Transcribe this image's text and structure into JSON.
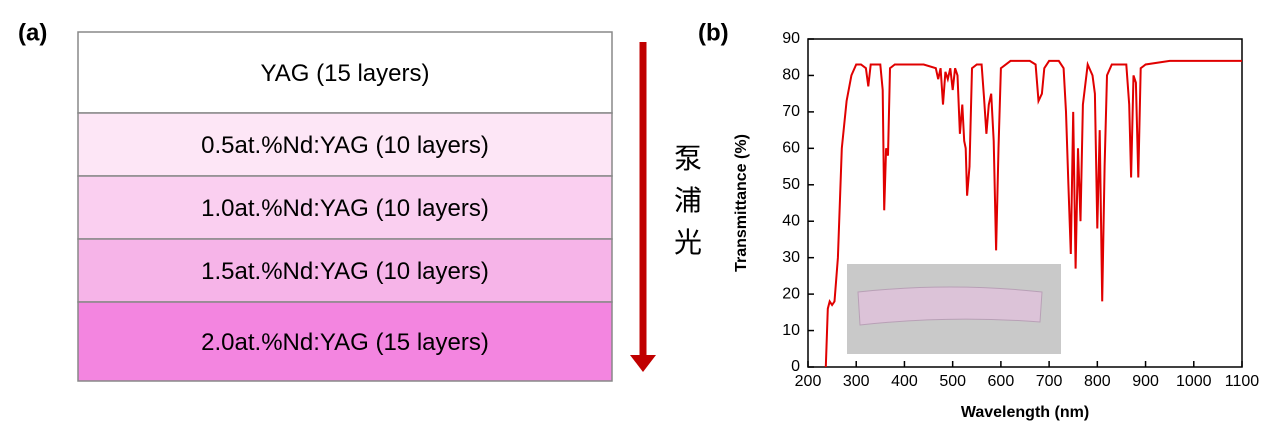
{
  "panel_a": {
    "label": "(a)",
    "arrow_label": "泵浦光",
    "arrow_color": "#c00000",
    "layers": [
      {
        "text": "YAG (15 layers)",
        "color": "#ffffff"
      },
      {
        "text": "0.5at.%Nd:YAG (10 layers)",
        "color": "#fde6f6"
      },
      {
        "text": "1.0at.%Nd:YAG (10 layers)",
        "color": "#facff0"
      },
      {
        "text": "1.5at.%Nd:YAG (10 layers)",
        "color": "#f6b4e8"
      },
      {
        "text": "2.0at.%Nd:YAG (15 layers)",
        "color": "#f385e0"
      }
    ]
  },
  "chart_data": {
    "type": "line",
    "panel_label": "(b)",
    "x_label": "Wavelength (nm)",
    "y_label": "Transmittance (%)",
    "x": [
      237,
      241,
      245,
      250,
      255,
      262,
      270,
      280,
      290,
      300,
      310,
      320,
      325,
      330,
      335,
      340,
      350,
      355,
      358,
      362,
      366,
      370,
      380,
      400,
      440,
      465,
      470,
      475,
      480,
      485,
      490,
      495,
      500,
      505,
      510,
      515,
      520,
      524,
      527,
      530,
      535,
      540,
      550,
      560,
      565,
      570,
      575,
      580,
      585,
      590,
      595,
      600,
      620,
      660,
      672,
      678,
      685,
      690,
      700,
      720,
      730,
      735,
      740,
      745,
      750,
      755,
      760,
      765,
      770,
      780,
      790,
      795,
      800,
      805,
      810,
      815,
      820,
      830,
      860,
      866,
      870,
      875,
      880,
      885,
      890,
      900,
      950,
      1000,
      1100
    ],
    "values": [
      0,
      16,
      18,
      17,
      18,
      30,
      60,
      73,
      80,
      83,
      83,
      82,
      77,
      83,
      83,
      83,
      83,
      76,
      43,
      60,
      58,
      82,
      83,
      83,
      83,
      82,
      79,
      82,
      72,
      81,
      79,
      82,
      76,
      82,
      80,
      64,
      72,
      62,
      60,
      47,
      55,
      82,
      83,
      83,
      74,
      64,
      72,
      75,
      62,
      32,
      60,
      82,
      84,
      84,
      83,
      73,
      75,
      82,
      84,
      84,
      82,
      70,
      50,
      31,
      70,
      27,
      60,
      40,
      72,
      83,
      80,
      75,
      38,
      65,
      18,
      55,
      80,
      83,
      83,
      72,
      52,
      80,
      78,
      52,
      82,
      83,
      84,
      84,
      84
    ],
    "color": "#e00000",
    "xlim": [
      200,
      1100
    ],
    "ylim": [
      0,
      90
    ],
    "xticks": [
      200,
      300,
      400,
      500,
      600,
      700,
      800,
      900,
      1000,
      1100
    ],
    "yticks": [
      0,
      10,
      20,
      30,
      40,
      50,
      60,
      70,
      80,
      90
    ]
  }
}
